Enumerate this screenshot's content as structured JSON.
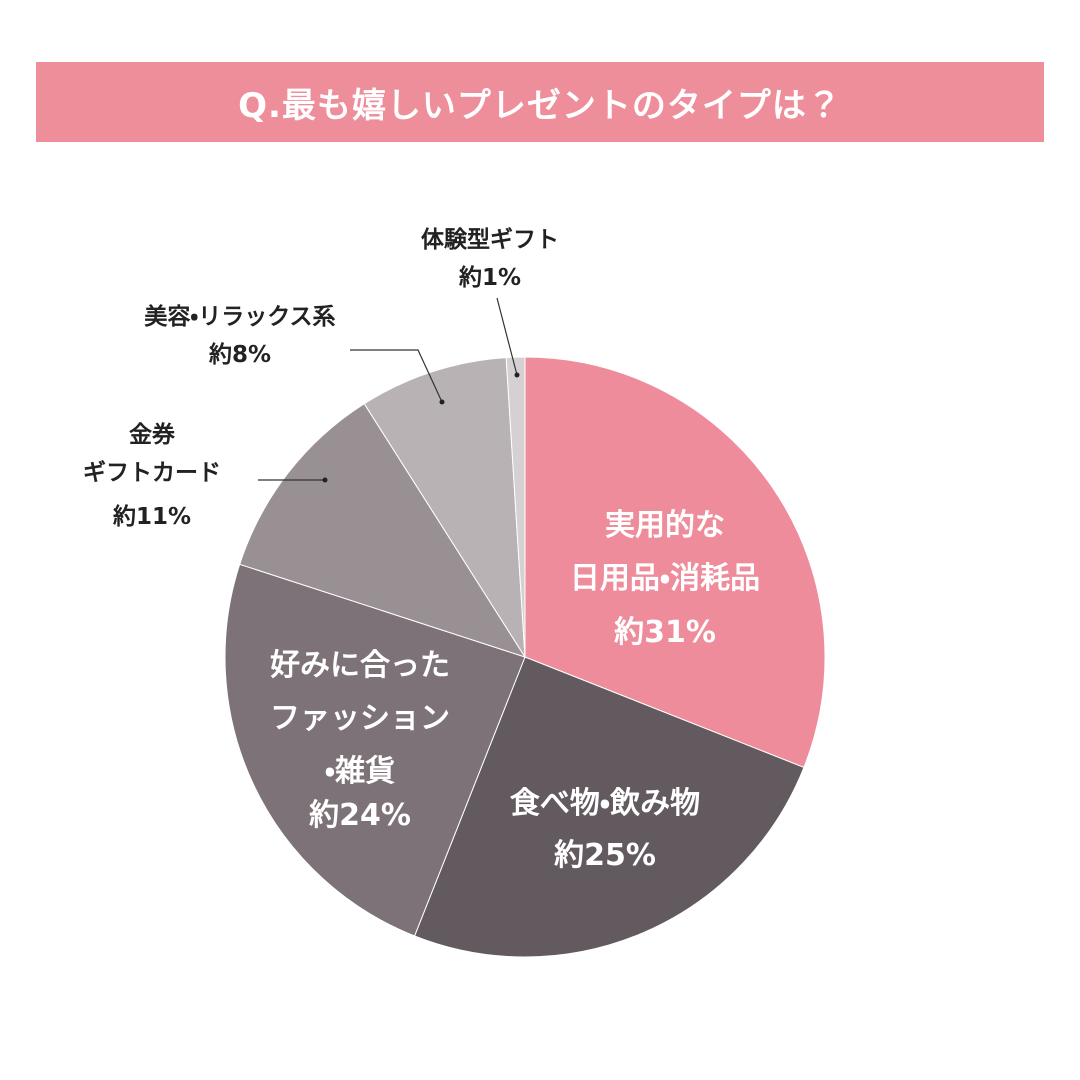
{
  "chart_data": {
    "type": "pie",
    "title": "Q.最も嬉しいプレゼントのタイプは？",
    "categories": [
      "実用的な\n日用品・消耗品",
      "食べ物・飲み物",
      "好みに合った\nファッション\n・雑貨",
      "金券\nギフトカード",
      "美容・リラックス系",
      "体験型ギフト"
    ],
    "values": [
      31,
      25,
      24,
      11,
      8,
      1
    ],
    "value_labels": [
      "約31%",
      "約25%",
      "約24%",
      "約11%",
      "約8%",
      "約1%"
    ],
    "colors": [
      "#ee8c9c",
      "#625a5f",
      "#7c7277",
      "#999094",
      "#b8b2b5",
      "#d5d0d2"
    ]
  }
}
